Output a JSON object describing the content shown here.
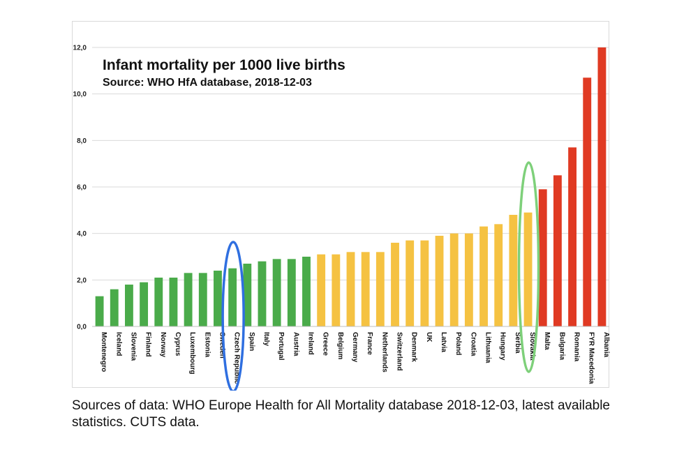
{
  "chart_data": {
    "type": "bar",
    "title": "Infant mortality per 1000 live births",
    "subtitle": "Source: WHO HfA database, 2018-12-03",
    "xlabel": "",
    "ylabel": "",
    "ylim": [
      0,
      12
    ],
    "yticks": [
      "0,0",
      "2,0",
      "4,0",
      "6,0",
      "8,0",
      "10,0",
      "12,0"
    ],
    "categories": [
      "Montenegro",
      "Iceland",
      "Slovenia",
      "Finland",
      "Norway",
      "Cyprus",
      "Luxembourg",
      "Estonia",
      "Sweden",
      "Czech Republic",
      "Spain",
      "Italy",
      "Portugal",
      "Austria",
      "Ireland",
      "Greece",
      "Belgium",
      "Germany",
      "France",
      "Netherlands",
      "Switzerland",
      "Denmark",
      "UK",
      "Latvia",
      "Poland",
      "Croatia",
      "Lithuania",
      "Hungary",
      "Serbia",
      "Slovakia",
      "Malta",
      "Bulgaria",
      "Romania",
      "FYR Macedonia",
      "Albania"
    ],
    "values": [
      1.3,
      1.6,
      1.8,
      1.9,
      2.1,
      2.1,
      2.3,
      2.3,
      2.4,
      2.5,
      2.7,
      2.8,
      2.9,
      2.9,
      3.0,
      3.1,
      3.1,
      3.2,
      3.2,
      3.2,
      3.6,
      3.7,
      3.7,
      3.9,
      4.0,
      4.0,
      4.3,
      4.4,
      4.8,
      4.9,
      5.9,
      6.5,
      7.7,
      10.7,
      12.0
    ],
    "bar_colors": [
      "green",
      "green",
      "green",
      "green",
      "green",
      "green",
      "green",
      "green",
      "green",
      "green",
      "green",
      "green",
      "green",
      "green",
      "green",
      "yellow",
      "yellow",
      "yellow",
      "yellow",
      "yellow",
      "yellow",
      "yellow",
      "yellow",
      "yellow",
      "yellow",
      "yellow",
      "yellow",
      "yellow",
      "yellow",
      "yellow",
      "red",
      "red",
      "red",
      "red",
      "red"
    ],
    "palette": {
      "green": "#4aab4a",
      "yellow": "#f5c242",
      "red": "#e03a23"
    },
    "highlights": [
      {
        "category": "Czech Republic",
        "color": "#2f6fe0"
      },
      {
        "category": "Slovakia",
        "color": "#7ed07a"
      }
    ],
    "grid": true,
    "legend": "none"
  },
  "caption": "Sources of data: WHO Europe Health for All Mortality database 2018-12-03, latest available statistics. CUTS data."
}
